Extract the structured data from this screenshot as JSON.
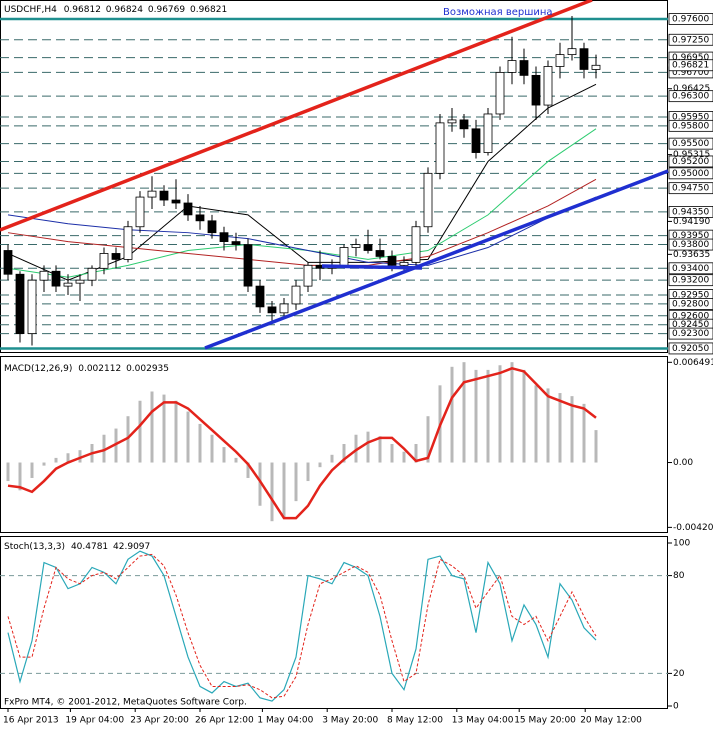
{
  "header": {
    "symbol": "USDCHF,H4",
    "ohlc": [
      0.96812,
      0.96824,
      0.96769,
      0.96821
    ]
  },
  "annotation": "Возможная вершина",
  "footer": "FxPro MT4, © 2001-2012, MetaQuotes Software Corp.",
  "chart_data": [
    {
      "type": "candlestick",
      "open": [
        0.937,
        0.933,
        0.923,
        0.932,
        0.9335,
        0.931,
        0.9315,
        0.932,
        0.934,
        0.9365,
        0.9355,
        0.941,
        0.946,
        0.947,
        0.9455,
        0.945,
        0.943,
        0.942,
        0.94,
        0.9385,
        0.938,
        0.931,
        0.9275,
        0.9265,
        0.928,
        0.931,
        0.9345,
        0.934,
        0.9345,
        0.9375,
        0.938,
        0.937,
        0.936,
        0.9345,
        0.935,
        0.941,
        0.95,
        0.9585,
        0.959,
        0.9575,
        0.9535,
        0.96,
        0.967,
        0.969,
        0.9665,
        0.9615,
        0.968,
        0.97,
        0.971,
        0.9675
      ],
      "high": [
        0.938,
        0.9335,
        0.933,
        0.9345,
        0.9345,
        0.933,
        0.933,
        0.9345,
        0.9375,
        0.9375,
        0.942,
        0.947,
        0.9495,
        0.948,
        0.949,
        0.9465,
        0.9445,
        0.943,
        0.941,
        0.94,
        0.939,
        0.932,
        0.9285,
        0.929,
        0.932,
        0.935,
        0.937,
        0.9355,
        0.938,
        0.939,
        0.9405,
        0.939,
        0.937,
        0.936,
        0.942,
        0.951,
        0.96,
        0.961,
        0.96,
        0.959,
        0.961,
        0.968,
        0.973,
        0.971,
        0.968,
        0.969,
        0.972,
        0.9765,
        0.972,
        0.97
      ],
      "low": [
        0.932,
        0.9215,
        0.921,
        0.93,
        0.93,
        0.9295,
        0.9285,
        0.931,
        0.933,
        0.934,
        0.935,
        0.94,
        0.944,
        0.9445,
        0.944,
        0.942,
        0.9405,
        0.939,
        0.937,
        0.937,
        0.93,
        0.9265,
        0.925,
        0.926,
        0.927,
        0.93,
        0.932,
        0.933,
        0.934,
        0.936,
        0.9365,
        0.9355,
        0.9335,
        0.9335,
        0.9345,
        0.94,
        0.949,
        0.957,
        0.956,
        0.9525,
        0.953,
        0.959,
        0.965,
        0.965,
        0.959,
        0.96,
        0.966,
        0.969,
        0.966,
        0.966
      ],
      "close": [
        0.933,
        0.923,
        0.932,
        0.9335,
        0.931,
        0.9315,
        0.932,
        0.934,
        0.9365,
        0.9355,
        0.941,
        0.946,
        0.947,
        0.9455,
        0.945,
        0.943,
        0.942,
        0.94,
        0.9385,
        0.938,
        0.931,
        0.9275,
        0.9265,
        0.928,
        0.931,
        0.9345,
        0.934,
        0.9345,
        0.9375,
        0.938,
        0.937,
        0.936,
        0.9345,
        0.935,
        0.941,
        0.95,
        0.9585,
        0.959,
        0.9575,
        0.9535,
        0.96,
        0.967,
        0.969,
        0.9665,
        0.9615,
        0.968,
        0.97,
        0.971,
        0.9675,
        0.9682
      ],
      "moving_averages": [
        {
          "color": "#000000",
          "x": [
            0,
            5,
            10,
            15,
            20,
            25,
            30,
            35,
            40,
            45,
            49
          ],
          "values": [
            0.9365,
            0.932,
            0.936,
            0.9445,
            0.943,
            0.935,
            0.935,
            0.9355,
            0.952,
            0.961,
            0.965
          ]
        },
        {
          "color": "#2ecc71",
          "x": [
            0,
            5,
            10,
            15,
            20,
            25,
            30,
            35,
            40,
            45,
            49
          ],
          "values": [
            0.934,
            0.9325,
            0.9345,
            0.937,
            0.938,
            0.937,
            0.9355,
            0.937,
            0.943,
            0.952,
            0.9575
          ]
        },
        {
          "color": "#b22222",
          "x": [
            0,
            5,
            10,
            15,
            20,
            25,
            30,
            35,
            40,
            45,
            49
          ],
          "values": [
            0.94,
            0.9385,
            0.9375,
            0.9365,
            0.9355,
            0.9345,
            0.9345,
            0.936,
            0.94,
            0.9445,
            0.949
          ]
        },
        {
          "color": "#1c2fa8",
          "x": [
            0,
            5,
            10,
            15,
            20,
            25,
            30,
            35,
            40,
            45,
            49
          ],
          "values": [
            0.943,
            0.9415,
            0.9405,
            0.94,
            0.939,
            0.937,
            0.935,
            0.9345,
            0.9375,
            0.9425,
            0.946
          ]
        }
      ],
      "ylim": [
        0.9199,
        0.9792
      ],
      "yticks": [
        {
          "value": 0.96425,
          "label": "0.96425"
        },
        {
          "value": 0.95315,
          "label": "0.95315"
        },
        {
          "value": 0.9419,
          "label": "0.94190"
        },
        {
          "value": 0.93635,
          "label": "0.93635"
        }
      ],
      "levels": [
        {
          "value": 0.976,
          "label": "0.97600"
        },
        {
          "value": 0.9725,
          "label": "0.97250"
        },
        {
          "value": 0.9695,
          "label": "0.96950"
        },
        {
          "value": 0.967,
          "label": "0.96700"
        },
        {
          "value": 0.963,
          "label": "0.96300"
        },
        {
          "value": 0.9595,
          "label": "0.95950"
        },
        {
          "value": 0.958,
          "label": "0.95800"
        },
        {
          "value": 0.955,
          "label": "0.95500"
        },
        {
          "value": 0.952,
          "label": "0.95200"
        },
        {
          "value": 0.95,
          "label": "0.95000"
        },
        {
          "value": 0.9475,
          "label": "0.94750"
        },
        {
          "value": 0.9435,
          "label": "0.94350"
        },
        {
          "value": 0.9395,
          "label": "0.93950"
        },
        {
          "value": 0.938,
          "label": "0.93800"
        },
        {
          "value": 0.934,
          "label": "0.93400"
        },
        {
          "value": 0.932,
          "label": "0.93200"
        },
        {
          "value": 0.9295,
          "label": "0.92950"
        },
        {
          "value": 0.928,
          "label": "0.92800"
        },
        {
          "value": 0.926,
          "label": "0.92600"
        },
        {
          "value": 0.9245,
          "label": "0.92450"
        },
        {
          "value": 0.923,
          "label": "0.92300"
        },
        {
          "value": 0.9205,
          "label": "0.92050"
        }
      ],
      "xticks": [
        {
          "value": 0,
          "label": "16 Apr 2013"
        },
        {
          "value": 5.2,
          "label": "19 Apr 04:00"
        },
        {
          "value": 10.6,
          "label": "23 Apr 20:00"
        },
        {
          "value": 16,
          "label": "26 Apr 12:00"
        },
        {
          "value": 21.2,
          "label": "1 May 04:00"
        },
        {
          "value": 26.6,
          "label": "3 May 20:00"
        },
        {
          "value": 32,
          "label": "8 May 12:00"
        },
        {
          "value": 37.4,
          "label": "13 May 04:00"
        },
        {
          "value": 42.6,
          "label": "15 May 20:00"
        },
        {
          "value": 48.1,
          "label": "20 May 12:00"
        }
      ]
    },
    {
      "type": "macd",
      "title": "MACD(12,26,9)",
      "readings": [
        0.002112,
        0.002935
      ],
      "values": [
        -0.0012,
        -0.0018,
        -0.001,
        -0.0002,
        0.0003,
        0.0006,
        0.0008,
        0.0012,
        0.0018,
        0.0022,
        0.003,
        0.004,
        0.0046,
        0.0044,
        0.004,
        0.0033,
        0.0025,
        0.0018,
        0.001,
        0.0003,
        -0.001,
        -0.0028,
        -0.0038,
        -0.0036,
        -0.0025,
        -0.0012,
        -0.0003,
        0.0005,
        0.0012,
        0.0018,
        0.002,
        0.0017,
        0.0012,
        0.0007,
        0.0012,
        0.003,
        0.005,
        0.0062,
        0.0065,
        0.006,
        0.006,
        0.0063,
        0.0065,
        0.006,
        0.005,
        0.0048,
        0.0045,
        0.0043,
        0.0038,
        0.0021
      ],
      "signal": [
        -0.0015,
        -0.0016,
        -0.0019,
        -0.0012,
        -0.0004,
        0.0,
        0.0003,
        0.0006,
        0.0008,
        0.0012,
        0.0016,
        0.0024,
        0.0033,
        0.0039,
        0.0039,
        0.0035,
        0.0028,
        0.0021,
        0.0014,
        0.0007,
        -0.0001,
        -0.0012,
        -0.0024,
        -0.0036,
        -0.0036,
        -0.0028,
        -0.0015,
        -0.0005,
        0.0002,
        0.0008,
        0.0013,
        0.0016,
        0.0016,
        0.0009,
        0.0001,
        0.0003,
        0.0024,
        0.0042,
        0.0052,
        0.0054,
        0.0056,
        0.0058,
        0.0061,
        0.0059,
        0.0051,
        0.0043,
        0.004,
        0.0037,
        0.0035,
        0.0029
      ],
      "ylim": [
        -0.0045,
        0.0069
      ],
      "yticks": [
        0.006491,
        {
          "value": 0,
          "label": "0.00"
        },
        {
          "value": -0.0042,
          "label": "-0.00420"
        }
      ]
    },
    {
      "type": "stochastic",
      "title": "Stoch(13,3,3)",
      "readings": [
        40.4781,
        42.9097
      ],
      "values": [
        45,
        15,
        40,
        88,
        85,
        72,
        75,
        85,
        82,
        75,
        90,
        95,
        92,
        80,
        55,
        30,
        12,
        8,
        15,
        12,
        14,
        5,
        3,
        10,
        30,
        80,
        78,
        75,
        88,
        85,
        80,
        55,
        20,
        10,
        35,
        90,
        92,
        80,
        78,
        45,
        88,
        75,
        40,
        62,
        50,
        30,
        75,
        65,
        48,
        40.4781
      ],
      "signal": [
        55,
        30,
        30,
        60,
        85,
        78,
        75,
        80,
        82,
        78,
        85,
        92,
        93,
        86,
        68,
        45,
        25,
        12,
        12,
        12,
        13,
        10,
        5,
        6,
        18,
        50,
        75,
        78,
        82,
        86,
        82,
        68,
        40,
        15,
        20,
        62,
        90,
        86,
        80,
        60,
        70,
        80,
        55,
        50,
        55,
        40,
        55,
        70,
        55,
        42.9097
      ],
      "ylim": [
        0,
        100
      ],
      "yticks": [
        100,
        80,
        20,
        0
      ]
    }
  ]
}
